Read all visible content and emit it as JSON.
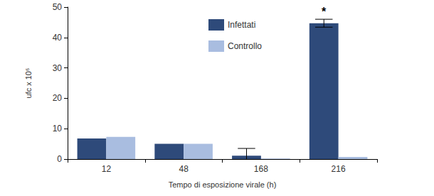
{
  "chart_data": {
    "type": "bar",
    "x_label": "Tempo di esposizione virale (h)",
    "y_label": "ufc x 10⁶",
    "categories": [
      "12",
      "48",
      "168",
      "216"
    ],
    "series": [
      {
        "name": "Infettati",
        "color": "#2e4a7a",
        "values": [
          6.8,
          5.0,
          1.1,
          44.7
        ],
        "errors": [
          null,
          null,
          2.4,
          1.3
        ]
      },
      {
        "name": "Controllo",
        "color": "#a9bde0",
        "values": [
          7.3,
          5.0,
          0.2,
          0.7
        ]
      }
    ],
    "annotations": [
      {
        "text": "*",
        "category": "216",
        "series": "Infettati"
      }
    ],
    "ylim": [
      0,
      50
    ],
    "yticks": [
      0,
      10,
      20,
      30,
      40,
      50
    ],
    "grid": false,
    "legend": "top"
  }
}
